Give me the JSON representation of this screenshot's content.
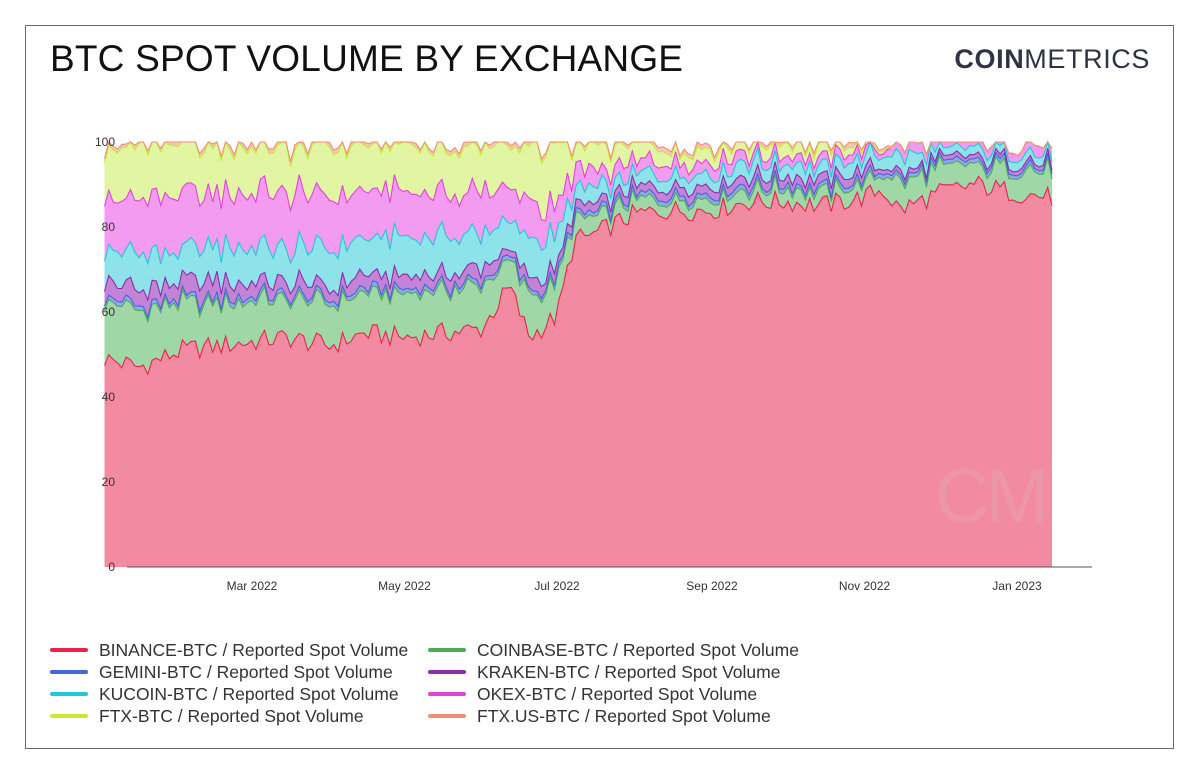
{
  "title": "BTC SPOT VOLUME BY EXCHANGE",
  "brand": {
    "bold": "COIN",
    "light": "METRICS",
    "watermark": "CM"
  },
  "chart_data": {
    "type": "area",
    "stacked": true,
    "x": [
      "2022-01-01",
      "2022-01-15",
      "2022-02-01",
      "2022-02-15",
      "2022-03-01",
      "2022-03-15",
      "2022-04-01",
      "2022-04-15",
      "2022-05-01",
      "2022-05-15",
      "2022-06-01",
      "2022-06-12",
      "2022-06-20",
      "2022-07-01",
      "2022-07-08",
      "2022-07-15",
      "2022-08-01",
      "2022-08-15",
      "2022-09-01",
      "2022-09-15",
      "2022-10-01",
      "2022-10-15",
      "2022-11-01",
      "2022-11-08",
      "2022-11-15",
      "2022-12-01",
      "2022-12-15",
      "2023-01-01",
      "2023-01-15"
    ],
    "xticks": [
      "Mar 2022",
      "May 2022",
      "Jul 2022",
      "Sep 2022",
      "Nov 2022",
      "Jan 2023"
    ],
    "xtick_dates": [
      "2022-03-01",
      "2022-05-01",
      "2022-07-01",
      "2022-09-01",
      "2022-11-01",
      "2023-01-01"
    ],
    "ylim": [
      0,
      100
    ],
    "yticks": [
      "0",
      "20",
      "40",
      "60",
      "80",
      "100"
    ],
    "series": [
      {
        "name": "BINANCE-BTC / Reported Spot Volume",
        "color": "#e8244b",
        "fill": "#f28ba1",
        "values": [
          49,
          47,
          51,
          52,
          53,
          54,
          52,
          55,
          54,
          55,
          56,
          66,
          54,
          59,
          77,
          78,
          83,
          84,
          84,
          86,
          86,
          85,
          87,
          89,
          84,
          88,
          90,
          88,
          87
        ]
      },
      {
        "name": "COINBASE-BTC / Reported Spot Volume",
        "color": "#4daa57",
        "fill": "#9fd8a6",
        "values": [
          14,
          13,
          11,
          10,
          10,
          9,
          10,
          9,
          10,
          10,
          10,
          6,
          10,
          7,
          5,
          4,
          3,
          3,
          3,
          3,
          3,
          3,
          3,
          4,
          6,
          6,
          4,
          6,
          6
        ]
      },
      {
        "name": "GEMINI-BTC / Reported Spot Volume",
        "color": "#4466d9",
        "fill": "#8fa6ea",
        "values": [
          1,
          1,
          1,
          1,
          1,
          1,
          1,
          1,
          1,
          1,
          1,
          1,
          1,
          1,
          1,
          1,
          1,
          1,
          1,
          1,
          1,
          1,
          1,
          1,
          1,
          1,
          1,
          1,
          1
        ]
      },
      {
        "name": "KRAKEN-BTC / Reported Spot Volume",
        "color": "#8e2da8",
        "fill": "#c383d6",
        "values": [
          4,
          4,
          4,
          4,
          3,
          3,
          3,
          3,
          3,
          3,
          3,
          2,
          3,
          2,
          2,
          2,
          2,
          2,
          2,
          2,
          2,
          2,
          2,
          1,
          1,
          1,
          1,
          1,
          1
        ]
      },
      {
        "name": "KUCOIN-BTC / Reported Spot Volume",
        "color": "#22c7d6",
        "fill": "#8ee2ea",
        "values": [
          8,
          8,
          7,
          8,
          8,
          8,
          9,
          9,
          9,
          9,
          8,
          7,
          9,
          8,
          4,
          4,
          3,
          3,
          3,
          3,
          3,
          3,
          3,
          3,
          4,
          2,
          2,
          2,
          2
        ]
      },
      {
        "name": "OKEX-BTC / Reported Spot Volume",
        "color": "#e044d9",
        "fill": "#f39bf0",
        "values": [
          12,
          13,
          13,
          12,
          13,
          13,
          12,
          11,
          11,
          10,
          10,
          7,
          9,
          6,
          5,
          4,
          3,
          3,
          3,
          2,
          2,
          2,
          2,
          1,
          3,
          2,
          2,
          2,
          3
        ]
      },
      {
        "name": "FTX-BTC / Reported Spot Volume",
        "color": "#c6ea36",
        "fill": "#e1f5a3",
        "values": [
          11,
          13,
          12,
          12,
          11,
          11,
          12,
          11,
          11,
          11,
          11,
          10,
          13,
          16,
          5,
          6,
          5,
          3,
          3,
          3,
          3,
          3,
          1,
          0.5,
          0,
          0,
          0,
          0,
          0
        ]
      },
      {
        "name": "FTX.US-BTC / Reported Spot Volume",
        "color": "#f38d78",
        "fill": "#f8c4b6",
        "values": [
          1,
          1,
          1,
          1,
          1,
          1,
          1,
          1,
          1,
          1,
          1,
          1,
          1,
          1,
          1,
          1,
          1,
          1,
          1,
          1,
          1,
          1,
          1,
          0.5,
          0,
          0,
          0,
          0,
          0
        ]
      }
    ]
  }
}
